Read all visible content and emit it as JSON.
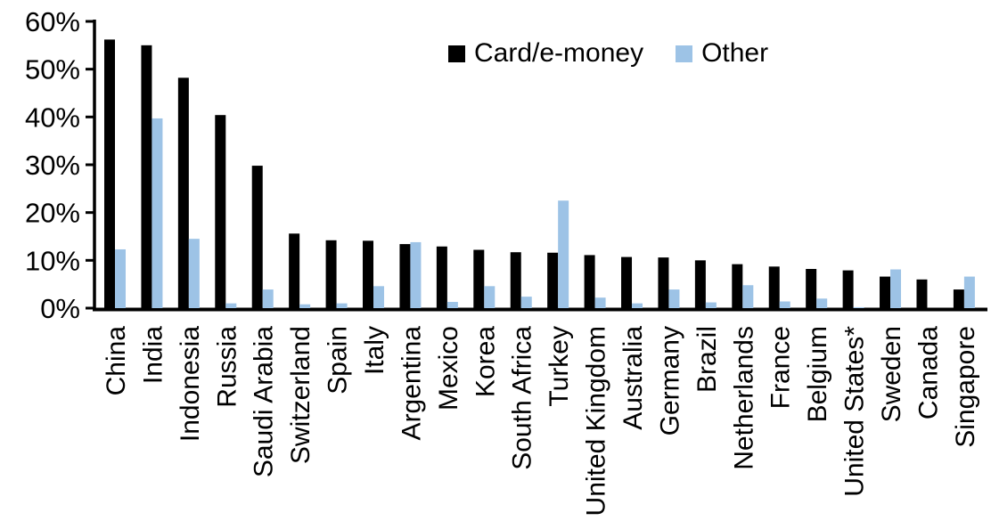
{
  "chart_data": {
    "type": "bar",
    "title": "",
    "xlabel": "",
    "ylabel": "",
    "ylim": [
      0,
      60
    ],
    "ytick_values": [
      0,
      10,
      20,
      30,
      40,
      50,
      60
    ],
    "ytick_labels": [
      "0%",
      "10%",
      "20%",
      "30%",
      "40%",
      "50%",
      "60%"
    ],
    "grid": false,
    "legend_position": "top-center",
    "categories": [
      "China",
      "India",
      "Indonesia",
      "Russia",
      "Saudi Arabia",
      "Switzerland",
      "Spain",
      "Italy",
      "Argentina",
      "Mexico",
      "Korea",
      "South Africa",
      "Turkey",
      "United Kingdom",
      "Australia",
      "Germany",
      "Brazil",
      "Netherlands",
      "France",
      "Belgium",
      "United States*",
      "Sweden",
      "Canada",
      "Singapore"
    ],
    "series": [
      {
        "name": "Card/e-money",
        "color": "#000000",
        "values": [
          56.2,
          55.0,
          48.2,
          40.4,
          29.8,
          15.6,
          14.2,
          14.1,
          13.4,
          12.9,
          12.2,
          11.7,
          11.6,
          11.1,
          10.7,
          10.6,
          10.0,
          9.2,
          8.7,
          8.2,
          7.9,
          6.6,
          6.0,
          3.9
        ]
      },
      {
        "name": "Other",
        "color": "#9DC3E6",
        "values": [
          12.3,
          39.7,
          14.5,
          1.0,
          3.9,
          0.8,
          1.0,
          4.6,
          13.8,
          1.3,
          4.6,
          2.4,
          22.5,
          2.2,
          1.0,
          3.9,
          1.2,
          4.8,
          1.4,
          2.0,
          0.2,
          8.1,
          0.0,
          6.6
        ]
      }
    ],
    "axis_color": "#000000"
  }
}
